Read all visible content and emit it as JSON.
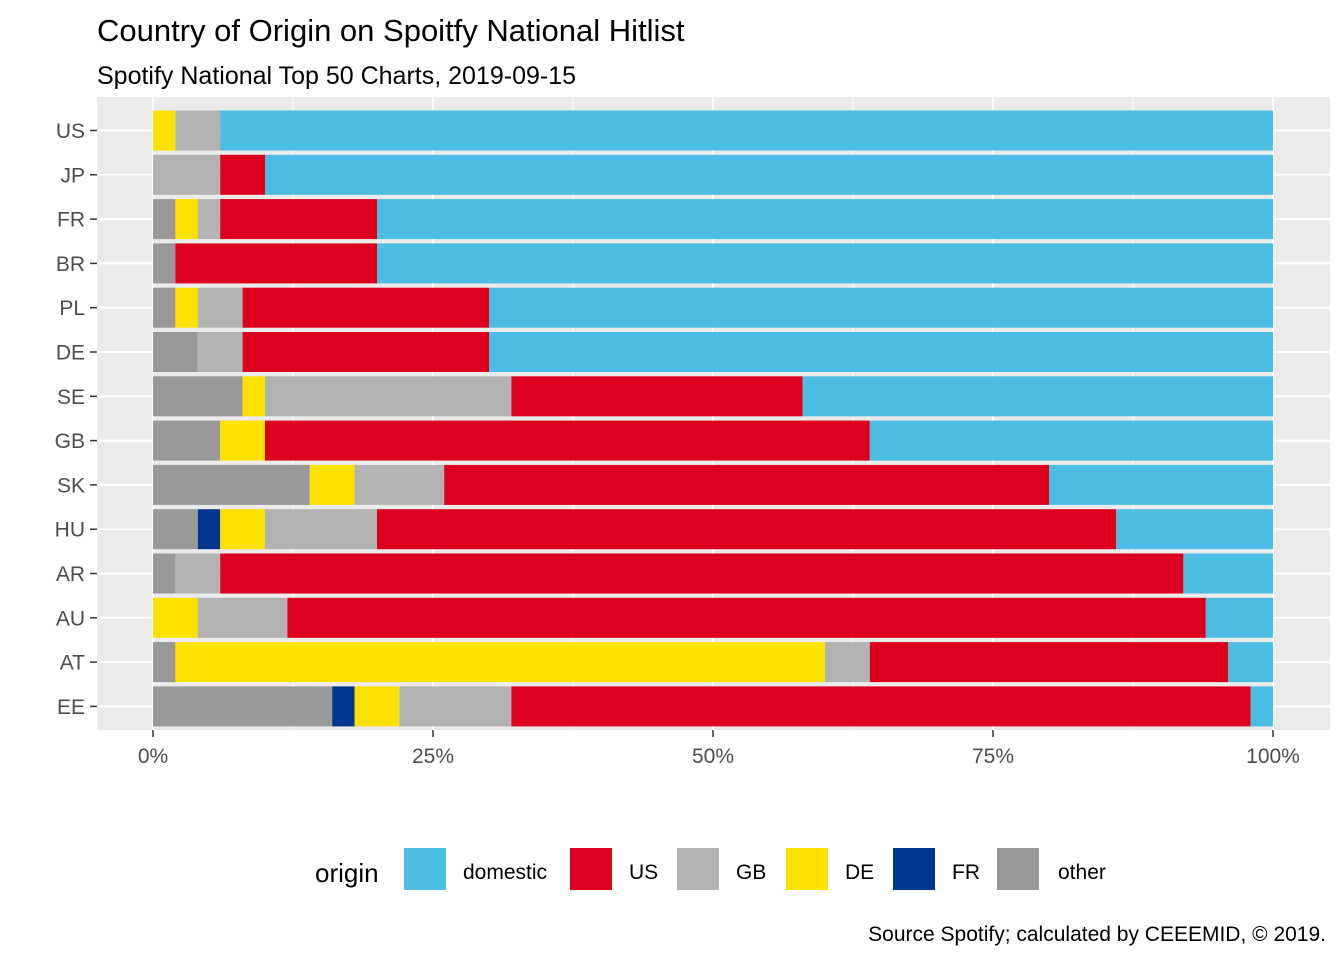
{
  "chart_data": {
    "type": "bar",
    "orientation": "horizontal",
    "stacked": true,
    "title": "Country of Origin on Spoitfy National Hitlist",
    "subtitle": "Spotify National Top 50 Charts, 2019-09-15",
    "caption": "Source Spotify; calculated by CEEEMID, © 2019.",
    "categories": [
      "US",
      "JP",
      "FR",
      "BR",
      "PL",
      "DE",
      "SE",
      "GB",
      "SK",
      "HU",
      "AR",
      "AU",
      "AT",
      "EE"
    ],
    "xlim": [
      0,
      100
    ],
    "xticks": [
      0,
      25,
      50,
      75,
      100
    ],
    "xtick_labels": [
      "0%",
      "25%",
      "50%",
      "75%",
      "100%"
    ],
    "grid": true,
    "legend": {
      "title": "origin",
      "placement": "bottom",
      "order": [
        "domestic",
        "US",
        "GB",
        "DE",
        "FR",
        "other"
      ]
    },
    "stack_order": [
      "other",
      "FR",
      "DE",
      "GB",
      "US",
      "domestic"
    ],
    "series": [
      {
        "name": "domestic",
        "color": "#4DBEE3",
        "values": [
          94,
          90,
          80,
          80,
          70,
          70,
          42,
          36,
          20,
          14,
          8,
          6,
          4,
          2
        ]
      },
      {
        "name": "US",
        "color": "#DC001E",
        "values": [
          0,
          4,
          14,
          18,
          22,
          22,
          26,
          54,
          54,
          66,
          86,
          82,
          32,
          66
        ]
      },
      {
        "name": "GB",
        "color": "#B3B3B3",
        "values": [
          4,
          6,
          2,
          0,
          4,
          4,
          22,
          0,
          8,
          10,
          4,
          8,
          4,
          10
        ]
      },
      {
        "name": "DE",
        "color": "#FDE100",
        "values": [
          2,
          0,
          2,
          0,
          2,
          0,
          2,
          4,
          4,
          4,
          0,
          4,
          58,
          4
        ]
      },
      {
        "name": "FR",
        "color": "#00368D",
        "values": [
          0,
          0,
          0,
          0,
          0,
          0,
          0,
          0,
          0,
          2,
          0,
          0,
          0,
          2
        ]
      },
      {
        "name": "other",
        "color": "#999999",
        "values": [
          0,
          0,
          2,
          2,
          2,
          4,
          8,
          6,
          14,
          4,
          2,
          0,
          2,
          16
        ]
      }
    ]
  }
}
